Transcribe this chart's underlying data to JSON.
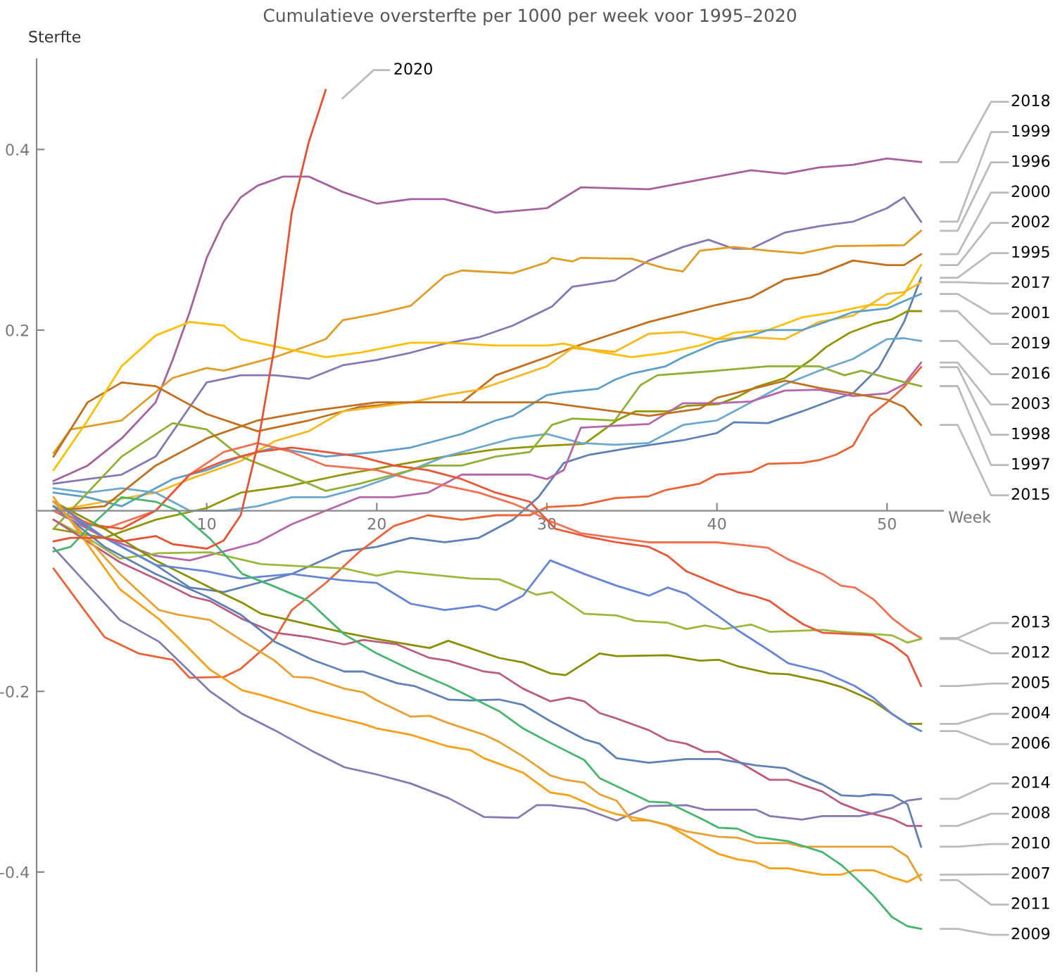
{
  "chart_data": {
    "type": "line",
    "title": "Cumulatieve oversterfte per 1000 per week voor 1995–2020",
    "xlabel": "Week",
    "ylabel": "Sterfte",
    "xlim": [
      0,
      53.3
    ],
    "ylim": [
      -0.51,
      0.5
    ],
    "xticks": [
      10,
      20,
      30,
      40,
      50
    ],
    "yticks": [
      -0.4,
      -0.2,
      0.2,
      0.4
    ],
    "series": [
      {
        "name": "2018",
        "color": "#a5609d",
        "x": [
          1,
          3,
          5,
          7,
          8,
          9,
          10,
          11,
          12,
          13,
          14.5,
          16,
          18,
          20,
          22,
          24,
          27,
          30,
          32,
          36,
          40,
          42,
          44,
          46,
          48,
          50,
          52
        ],
        "values": [
          0.033,
          0.05,
          0.08,
          0.12,
          0.167,
          0.22,
          0.28,
          0.32,
          0.347,
          0.36,
          0.37,
          0.37,
          0.353,
          0.34,
          0.345,
          0.345,
          0.33,
          0.335,
          0.358,
          0.356,
          0.37,
          0.377,
          0.373,
          0.38,
          0.383,
          0.39,
          0.386
        ]
      },
      {
        "name": "1999",
        "color": "#8778b3",
        "x": [
          1,
          3,
          5,
          7,
          10,
          12,
          14,
          16,
          18,
          20,
          22,
          24,
          26,
          28,
          30.3,
          31.5,
          34,
          36,
          38,
          39.5,
          41,
          42,
          44,
          46,
          48,
          50,
          51,
          52
        ],
        "values": [
          0.03,
          0.035,
          0.04,
          0.06,
          0.142,
          0.15,
          0.15,
          0.146,
          0.161,
          0.167,
          0.175,
          0.185,
          0.192,
          0.205,
          0.226,
          0.248,
          0.255,
          0.277,
          0.292,
          0.3,
          0.29,
          0.29,
          0.308,
          0.315,
          0.32,
          0.335,
          0.347,
          0.32
        ]
      },
      {
        "name": "1996",
        "color": "#e19c24",
        "x": [
          1,
          2,
          5,
          8,
          10,
          11,
          14,
          16,
          17,
          18,
          20,
          22,
          24,
          25,
          28,
          30,
          30.3,
          31.5,
          32,
          35,
          37,
          38,
          39,
          41,
          43,
          45,
          47,
          51,
          52
        ],
        "values": [
          0.064,
          0.09,
          0.1,
          0.147,
          0.158,
          0.155,
          0.17,
          0.183,
          0.19,
          0.211,
          0.218,
          0.227,
          0.26,
          0.266,
          0.263,
          0.275,
          0.28,
          0.276,
          0.28,
          0.279,
          0.268,
          0.265,
          0.288,
          0.292,
          0.288,
          0.285,
          0.293,
          0.294,
          0.31
        ]
      },
      {
        "name": "2000",
        "color": "#c56e1a",
        "x": [
          1,
          3,
          5,
          7,
          10,
          13,
          16,
          19,
          22,
          25,
          26,
          27,
          30,
          32,
          36,
          40,
          42,
          44,
          46,
          48,
          50,
          51,
          52
        ],
        "values": [
          0.06,
          0.12,
          0.142,
          0.138,
          0.107,
          0.088,
          0.1,
          0.115,
          0.12,
          0.12,
          0.135,
          0.15,
          0.17,
          0.184,
          0.209,
          0.228,
          0.236,
          0.256,
          0.262,
          0.277,
          0.272,
          0.272,
          0.284
        ]
      },
      {
        "name": "2002",
        "color": "#ffbf00",
        "x": [
          1,
          3,
          5,
          7,
          9,
          11,
          12,
          15,
          17,
          19,
          22,
          24,
          27,
          30,
          31,
          33,
          35,
          37,
          39,
          41,
          43,
          45,
          47,
          49,
          50,
          51,
          52
        ],
        "values": [
          0.045,
          0.1,
          0.16,
          0.194,
          0.209,
          0.205,
          0.19,
          0.178,
          0.17,
          0.175,
          0.186,
          0.186,
          0.183,
          0.183,
          0.185,
          0.176,
          0.17,
          0.175,
          0.183,
          0.197,
          0.2,
          0.214,
          0.22,
          0.228,
          0.228,
          0.24,
          0.272
        ]
      },
      {
        "name": "1995",
        "color": "#5e81b5",
        "x": [
          1,
          4,
          7,
          9,
          11,
          13,
          15,
          18,
          20,
          22,
          24,
          26,
          28,
          29.5,
          31,
          32.5,
          35,
          38,
          40,
          41,
          43,
          45,
          47,
          48,
          49.5,
          51,
          52
        ],
        "values": [
          0.005,
          -0.03,
          -0.06,
          -0.085,
          -0.09,
          -0.08,
          -0.07,
          -0.045,
          -0.04,
          -0.03,
          -0.035,
          -0.03,
          -0.01,
          0.015,
          0.053,
          0.062,
          0.07,
          0.078,
          0.086,
          0.098,
          0.097,
          0.11,
          0.124,
          0.13,
          0.158,
          0.209,
          0.258
        ]
      },
      {
        "name": "2017",
        "color": "#f8b620",
        "x": [
          1,
          4,
          7,
          9,
          12,
          14,
          16,
          18,
          20,
          22,
          24,
          26,
          28,
          30,
          31.5,
          34,
          36,
          38,
          40,
          42,
          44,
          46,
          48,
          50,
          51,
          52
        ],
        "values": [
          0.0,
          0.01,
          0.02,
          0.035,
          0.055,
          0.077,
          0.088,
          0.11,
          0.115,
          0.12,
          0.128,
          0.134,
          0.147,
          0.16,
          0.18,
          0.176,
          0.196,
          0.198,
          0.19,
          0.192,
          0.19,
          0.209,
          0.216,
          0.24,
          0.242,
          0.253
        ]
      },
      {
        "name": "2001",
        "color": "#5d9ec7",
        "x": [
          1,
          3,
          5,
          8,
          10,
          12,
          14,
          17,
          20,
          22,
          25,
          27,
          28,
          30,
          31,
          33,
          34,
          35,
          37,
          38,
          40,
          42,
          43,
          45,
          47,
          48,
          50,
          52
        ],
        "values": [
          0.02,
          0.015,
          0.005,
          0.035,
          0.045,
          0.06,
          0.07,
          0.06,
          0.065,
          0.07,
          0.085,
          0.1,
          0.105,
          0.128,
          0.131,
          0.135,
          0.145,
          0.152,
          0.16,
          0.17,
          0.186,
          0.194,
          0.2,
          0.2,
          0.213,
          0.22,
          0.224,
          0.24
        ]
      },
      {
        "name": "2019",
        "color": "#929600",
        "x": [
          1,
          4,
          7,
          10,
          12,
          15,
          18,
          21,
          24,
          27,
          30,
          32.2,
          34.1,
          35.2,
          37.1,
          38.2,
          40.1,
          41.2,
          42.3,
          44,
          45.6,
          46.4,
          47.8,
          49.2,
          50.3,
          51.2,
          52
        ],
        "values": [
          -0.02,
          -0.03,
          -0.01,
          0.003,
          0.02,
          0.028,
          0.04,
          0.05,
          0.06,
          0.068,
          0.072,
          0.074,
          0.1,
          0.11,
          0.11,
          0.116,
          0.118,
          0.126,
          0.137,
          0.147,
          0.168,
          0.181,
          0.197,
          0.207,
          0.212,
          0.221,
          0.221
        ]
      },
      {
        "name": "2016",
        "color": "#6aa8d0",
        "x": [
          1,
          3,
          5,
          7,
          9,
          11,
          13,
          15,
          17,
          19,
          22,
          24,
          26,
          28,
          30,
          32,
          34,
          36,
          38,
          40,
          42,
          44,
          46,
          48,
          50,
          51,
          52
        ],
        "values": [
          0.025,
          0.02,
          0.025,
          0.02,
          0.0,
          0.0,
          0.005,
          0.015,
          0.015,
          0.025,
          0.045,
          0.06,
          0.07,
          0.08,
          0.085,
          0.075,
          0.073,
          0.075,
          0.095,
          0.1,
          0.12,
          0.14,
          0.155,
          0.168,
          0.19,
          0.191,
          0.188
        ]
      },
      {
        "name": "2003",
        "color": "#b566a8",
        "x": [
          1,
          4,
          7,
          9,
          11,
          13,
          15,
          17,
          19,
          21,
          23,
          25,
          27,
          29,
          30,
          31,
          32,
          34,
          36,
          38,
          40,
          42,
          44,
          46,
          48,
          50,
          51,
          52
        ],
        "values": [
          0.0,
          -0.03,
          -0.05,
          -0.055,
          -0.045,
          -0.035,
          -0.015,
          0.0,
          0.015,
          0.015,
          0.02,
          0.04,
          0.04,
          0.04,
          0.035,
          0.045,
          0.092,
          0.094,
          0.096,
          0.119,
          0.119,
          0.121,
          0.133,
          0.134,
          0.127,
          0.13,
          0.14,
          0.164
        ]
      },
      {
        "name": "1998",
        "color": "#eb6235",
        "x": [
          1,
          3,
          4,
          6,
          8,
          9,
          11,
          12,
          14,
          15,
          17,
          19,
          21,
          23,
          25,
          27,
          29,
          30,
          32,
          34,
          36,
          37,
          39,
          40,
          42,
          43,
          45,
          46,
          47,
          48,
          49,
          50,
          51,
          52
        ],
        "values": [
          -0.064,
          -0.115,
          -0.14,
          -0.158,
          -0.165,
          -0.185,
          -0.184,
          -0.175,
          -0.142,
          -0.11,
          -0.08,
          -0.045,
          -0.017,
          -0.005,
          -0.01,
          -0.005,
          -0.005,
          0.004,
          0.006,
          0.014,
          0.016,
          0.023,
          0.03,
          0.04,
          0.043,
          0.052,
          0.053,
          0.056,
          0.062,
          0.072,
          0.105,
          0.12,
          0.137,
          0.159
        ]
      },
      {
        "name": "1997",
        "color": "#8fb032",
        "x": [
          1,
          3,
          5,
          8,
          10,
          12,
          14,
          16,
          17,
          19,
          21,
          23,
          25,
          27,
          29,
          30.3,
          31.5,
          34,
          35.5,
          36.5,
          40,
          43,
          46,
          47.5,
          48.5,
          50,
          52
        ],
        "values": [
          -0.02,
          0.02,
          0.06,
          0.097,
          0.09,
          0.06,
          0.045,
          0.03,
          0.022,
          0.03,
          0.04,
          0.05,
          0.05,
          0.06,
          0.065,
          0.095,
          0.102,
          0.1,
          0.139,
          0.15,
          0.155,
          0.16,
          0.16,
          0.15,
          0.155,
          0.147,
          0.138
        ]
      },
      {
        "name": "2015",
        "color": "#c0701e",
        "x": [
          1,
          4,
          7,
          10,
          13,
          16,
          20,
          24,
          28,
          30,
          32,
          36,
          39,
          40,
          44,
          46,
          48,
          50,
          51,
          52
        ],
        "values": [
          0.0,
          0.005,
          0.05,
          0.08,
          0.1,
          0.11,
          0.12,
          0.12,
          0.12,
          0.12,
          0.115,
          0.105,
          0.113,
          0.125,
          0.144,
          0.136,
          0.13,
          0.123,
          0.115,
          0.095
        ]
      },
      {
        "name": "2013",
        "color": "#f07050",
        "x": [
          1,
          4,
          7,
          9,
          11,
          13,
          15,
          17,
          20,
          22,
          24,
          26,
          28,
          29,
          30,
          32,
          36,
          40,
          43,
          44.2,
          46.2,
          47.3,
          48.1,
          49.2,
          50.3,
          51.2,
          52
        ],
        "values": [
          0.0,
          -0.02,
          0.0,
          0.04,
          0.065,
          0.075,
          0.065,
          0.05,
          0.045,
          0.035,
          0.028,
          0.02,
          0.008,
          0.0,
          -0.01,
          -0.025,
          -0.035,
          -0.035,
          -0.041,
          -0.054,
          -0.07,
          -0.083,
          -0.085,
          -0.098,
          -0.119,
          -0.132,
          -0.141
        ]
      },
      {
        "name": "2012",
        "color": "#9bb83a",
        "x": [
          1,
          3,
          4.9,
          7.2,
          10.2,
          13.2,
          15.1,
          18.1,
          20,
          21.2,
          25.5,
          27.2,
          29.4,
          30.3,
          32.2,
          34.1,
          35.2,
          37.1,
          38.2,
          39.3,
          40.4,
          42,
          43.1,
          46.2,
          47.3,
          50.3,
          51.2,
          52
        ],
        "values": [
          -0.01,
          -0.03,
          -0.053,
          -0.047,
          -0.046,
          -0.059,
          -0.061,
          -0.064,
          -0.072,
          -0.067,
          -0.075,
          -0.076,
          -0.093,
          -0.09,
          -0.114,
          -0.116,
          -0.122,
          -0.124,
          -0.131,
          -0.127,
          -0.131,
          -0.126,
          -0.134,
          -0.132,
          -0.134,
          -0.138,
          -0.146,
          -0.142
        ]
      },
      {
        "name": "2005",
        "color": "#e95536",
        "x": [
          1,
          3,
          5,
          7,
          9,
          11,
          13,
          15,
          17,
          19,
          21,
          23,
          25,
          27,
          29,
          30.5,
          32.2,
          34.1,
          36,
          37.1,
          38.2,
          40.1,
          41.2,
          42.3,
          43.1,
          44.2,
          45.1,
          46.2,
          48.4,
          49.2,
          50.3,
          51.2,
          52
        ],
        "values": [
          0.01,
          -0.015,
          -0.02,
          0.0,
          0.04,
          0.055,
          0.065,
          0.07,
          0.065,
          0.06,
          0.05,
          0.045,
          0.035,
          0.02,
          0.01,
          -0.02,
          -0.028,
          -0.035,
          -0.04,
          -0.05,
          -0.067,
          -0.082,
          -0.09,
          -0.095,
          -0.1,
          -0.115,
          -0.126,
          -0.135,
          -0.137,
          -0.138,
          -0.148,
          -0.161,
          -0.194
        ]
      },
      {
        "name": "2004",
        "color": "#8a8e00",
        "x": [
          1,
          4,
          7,
          10.2,
          12.1,
          13.2,
          15.1,
          18.1,
          20,
          23.1,
          24.2,
          27.2,
          28.6,
          30.2,
          31.1,
          33.1,
          34.1,
          37.1,
          39,
          40.1,
          41.2,
          43.1,
          44.2,
          46.2,
          47.3,
          48.4,
          49.2,
          50.3,
          51.2,
          52
        ],
        "values": [
          0.01,
          -0.02,
          -0.055,
          -0.085,
          -0.102,
          -0.114,
          -0.122,
          -0.135,
          -0.142,
          -0.152,
          -0.144,
          -0.163,
          -0.168,
          -0.18,
          -0.182,
          -0.158,
          -0.161,
          -0.16,
          -0.166,
          -0.165,
          -0.172,
          -0.18,
          -0.181,
          -0.189,
          -0.195,
          -0.204,
          -0.211,
          -0.225,
          -0.236,
          -0.236
        ]
      },
      {
        "name": "2006",
        "color": "#6685d9",
        "x": [
          1,
          4,
          7,
          10,
          12,
          15,
          18,
          20,
          22,
          24,
          26,
          27,
          28.6,
          30.2,
          32.2,
          34.1,
          36,
          37.1,
          38.2,
          40.1,
          41.2,
          43.1,
          44.2,
          46.2,
          48.1,
          49.2,
          50.3,
          51.2,
          52
        ],
        "values": [
          0.01,
          -0.03,
          -0.06,
          -0.067,
          -0.075,
          -0.07,
          -0.077,
          -0.08,
          -0.103,
          -0.11,
          -0.105,
          -0.11,
          -0.094,
          -0.055,
          -0.07,
          -0.083,
          -0.094,
          -0.085,
          -0.092,
          -0.117,
          -0.132,
          -0.155,
          -0.169,
          -0.178,
          -0.194,
          -0.207,
          -0.225,
          -0.236,
          -0.244
        ]
      },
      {
        "name": "2014",
        "color": "#8778b3",
        "x": [
          1,
          4.9,
          7.2,
          10.2,
          12.1,
          14,
          16.2,
          18.1,
          20,
          22,
          24.2,
          26.3,
          28.3,
          29.4,
          30.2,
          32.2,
          34.1,
          36,
          38.2,
          39.3,
          41.2,
          42.3,
          43.1,
          45,
          46.2,
          48.4,
          49.2,
          50.3,
          51.2,
          52
        ],
        "values": [
          -0.041,
          -0.121,
          -0.145,
          -0.2,
          -0.225,
          -0.243,
          -0.266,
          -0.284,
          -0.292,
          -0.302,
          -0.318,
          -0.339,
          -0.34,
          -0.326,
          -0.326,
          -0.33,
          -0.343,
          -0.327,
          -0.326,
          -0.331,
          -0.331,
          -0.331,
          -0.338,
          -0.342,
          -0.338,
          -0.338,
          -0.335,
          -0.329,
          -0.321,
          -0.319
        ]
      },
      {
        "name": "2008",
        "color": "#bc5b80",
        "x": [
          1,
          4.9,
          7.2,
          9.1,
          10.2,
          12.1,
          14,
          16,
          18.1,
          19.2,
          21.2,
          23.1,
          24.2,
          26.3,
          27.2,
          28.6,
          30.2,
          31.3,
          32.2,
          33.1,
          34.1,
          36,
          37.1,
          38.2,
          39.3,
          40.1,
          41.2,
          43.1,
          44.2,
          46.2,
          47.3,
          48.4,
          50.3,
          51.2,
          52
        ],
        "values": [
          -0.01,
          -0.057,
          -0.077,
          -0.095,
          -0.1,
          -0.12,
          -0.135,
          -0.14,
          -0.148,
          -0.143,
          -0.148,
          -0.163,
          -0.166,
          -0.178,
          -0.18,
          -0.197,
          -0.211,
          -0.207,
          -0.211,
          -0.224,
          -0.23,
          -0.243,
          -0.254,
          -0.258,
          -0.267,
          -0.267,
          -0.277,
          -0.298,
          -0.298,
          -0.311,
          -0.324,
          -0.332,
          -0.341,
          -0.349,
          -0.349
        ]
      },
      {
        "name": "2010",
        "color": "#5e81b5",
        "x": [
          1,
          4,
          7,
          10,
          12,
          14,
          16.2,
          18.1,
          19.2,
          21.2,
          22.2,
          24.2,
          25.5,
          27.2,
          28.6,
          30.2,
          32.2,
          33.1,
          34.1,
          36,
          38.2,
          40.1,
          42.3,
          44,
          45,
          46.2,
          47.3,
          48.4,
          49.2,
          50.3,
          51.2,
          52
        ],
        "values": [
          0.005,
          -0.04,
          -0.07,
          -0.095,
          -0.115,
          -0.145,
          -0.165,
          -0.178,
          -0.178,
          -0.191,
          -0.194,
          -0.209,
          -0.21,
          -0.209,
          -0.215,
          -0.233,
          -0.253,
          -0.258,
          -0.274,
          -0.279,
          -0.275,
          -0.275,
          -0.282,
          -0.285,
          -0.294,
          -0.303,
          -0.315,
          -0.316,
          -0.314,
          -0.315,
          -0.325,
          -0.372
        ]
      },
      {
        "name": "2007",
        "color": "#f89f13",
        "x": [
          1,
          4.9,
          7.2,
          8.3,
          10.2,
          12.1,
          13.2,
          15.1,
          16.2,
          18.1,
          19.2,
          20,
          22,
          24.2,
          25.5,
          26.3,
          28.6,
          30.2,
          31.3,
          33.1,
          34.1,
          36,
          37.1,
          38.2,
          39.3,
          40.1,
          41.2,
          42.3,
          43.1,
          44.2,
          45,
          46.2,
          47.3,
          48.1,
          49.2,
          50.3,
          51.2,
          52
        ],
        "values": [
          0.015,
          -0.087,
          -0.12,
          -0.14,
          -0.176,
          -0.199,
          -0.204,
          -0.215,
          -0.222,
          -0.231,
          -0.236,
          -0.241,
          -0.248,
          -0.261,
          -0.265,
          -0.274,
          -0.29,
          -0.312,
          -0.315,
          -0.33,
          -0.336,
          -0.343,
          -0.348,
          -0.36,
          -0.372,
          -0.38,
          -0.386,
          -0.389,
          -0.396,
          -0.396,
          -0.399,
          -0.403,
          -0.403,
          -0.398,
          -0.398,
          -0.406,
          -0.411,
          -0.403
        ]
      },
      {
        "name": "2011",
        "color": "#e8a030",
        "x": [
          1,
          4.9,
          7.2,
          8.3,
          10.2,
          12.1,
          14,
          15.1,
          16.2,
          18.1,
          19.2,
          20,
          22,
          23.1,
          24.2,
          26.3,
          27.2,
          28.6,
          30.2,
          31.1,
          32.2,
          33.1,
          34.1,
          35,
          36,
          37.1,
          38.2,
          40.1,
          41.2,
          42.3,
          44.2,
          45,
          50.3,
          51.2,
          52
        ],
        "values": [
          0.01,
          -0.07,
          -0.11,
          -0.115,
          -0.121,
          -0.144,
          -0.166,
          -0.184,
          -0.185,
          -0.197,
          -0.201,
          -0.21,
          -0.228,
          -0.227,
          -0.235,
          -0.248,
          -0.256,
          -0.272,
          -0.293,
          -0.298,
          -0.301,
          -0.314,
          -0.321,
          -0.343,
          -0.343,
          -0.348,
          -0.355,
          -0.361,
          -0.362,
          -0.368,
          -0.368,
          -0.372,
          -0.372,
          -0.383,
          -0.409
        ]
      },
      {
        "name": "2009",
        "color": "#47b66d",
        "x": [
          1,
          2,
          3,
          5,
          7,
          8.3,
          10.2,
          12.1,
          14,
          16,
          18.1,
          20,
          22,
          24.2,
          27.2,
          28.6,
          30.2,
          32.2,
          33.1,
          36,
          37.1,
          39.3,
          40.1,
          41.2,
          42.3,
          44.2,
          46.2,
          47.3,
          48.4,
          49.2,
          50.3,
          51.2,
          52
        ],
        "values": [
          -0.045,
          -0.04,
          -0.02,
          0.015,
          0.01,
          0.0,
          -0.031,
          -0.07,
          -0.084,
          -0.1,
          -0.137,
          -0.158,
          -0.176,
          -0.194,
          -0.222,
          -0.241,
          -0.257,
          -0.276,
          -0.296,
          -0.322,
          -0.323,
          -0.343,
          -0.351,
          -0.352,
          -0.361,
          -0.366,
          -0.378,
          -0.392,
          -0.411,
          -0.426,
          -0.45,
          -0.46,
          -0.463
        ]
      },
      {
        "name": "2020",
        "color": "#e8502f",
        "x": [
          1,
          2,
          4,
          5,
          7,
          8,
          10,
          11,
          12,
          13,
          14,
          15,
          16,
          17
        ],
        "values": [
          -0.034,
          -0.03,
          -0.03,
          -0.034,
          -0.028,
          -0.037,
          -0.042,
          -0.033,
          -0.005,
          0.073,
          0.183,
          0.33,
          0.408,
          0.466
        ]
      }
    ]
  }
}
